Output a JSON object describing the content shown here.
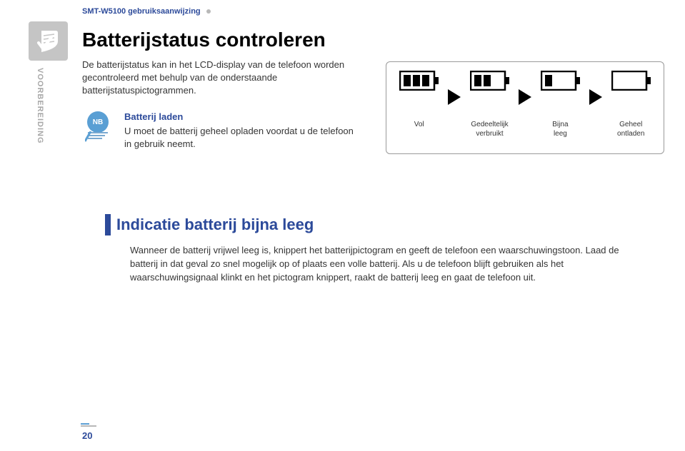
{
  "header": "SMT-W5100 gebruiksaanwijzing",
  "side_tab": "VOORBEREIDING",
  "title": "Batterijstatus controleren",
  "intro": "De batterijstatus kan in het LCD-display van de telefoon worden gecontroleerd met behulp van de onderstaande batterijstatuspictogrammen.",
  "note": {
    "badge": "NB",
    "heading": "Batterij laden",
    "body": "U moet de batterij geheel opladen voordat u de telefoon in gebruik neemt."
  },
  "battery_states": {
    "bars_per_state": [
      3,
      2,
      1,
      0
    ],
    "labels": [
      "Vol",
      "Gedeeltelijk\nverbruikt",
      "Bijna\nleeg",
      "Geheel\nontladen"
    ],
    "outline_color": "#000000",
    "fill_color": "#000000"
  },
  "section": {
    "title": "Indicatie batterij bijna leeg",
    "body": "Wanneer de batterij vrijwel leeg is, knippert het batterijpictogram en geeft de telefoon een waarschuwingstoon. Laad de batterij in dat geval zo snel mogelijk op of plaats een volle batterij. Als u de telefoon blijft gebruiken als het waarschuwingsignaal klinkt en het pictogram knippert, raakt de batterij leeg en gaat de telefoon uit."
  },
  "page_number": "20",
  "colors": {
    "brand_blue": "#2c4a9a",
    "accent_blue": "#5a9fd4",
    "text": "#353535",
    "muted": "#a8a8a8"
  }
}
